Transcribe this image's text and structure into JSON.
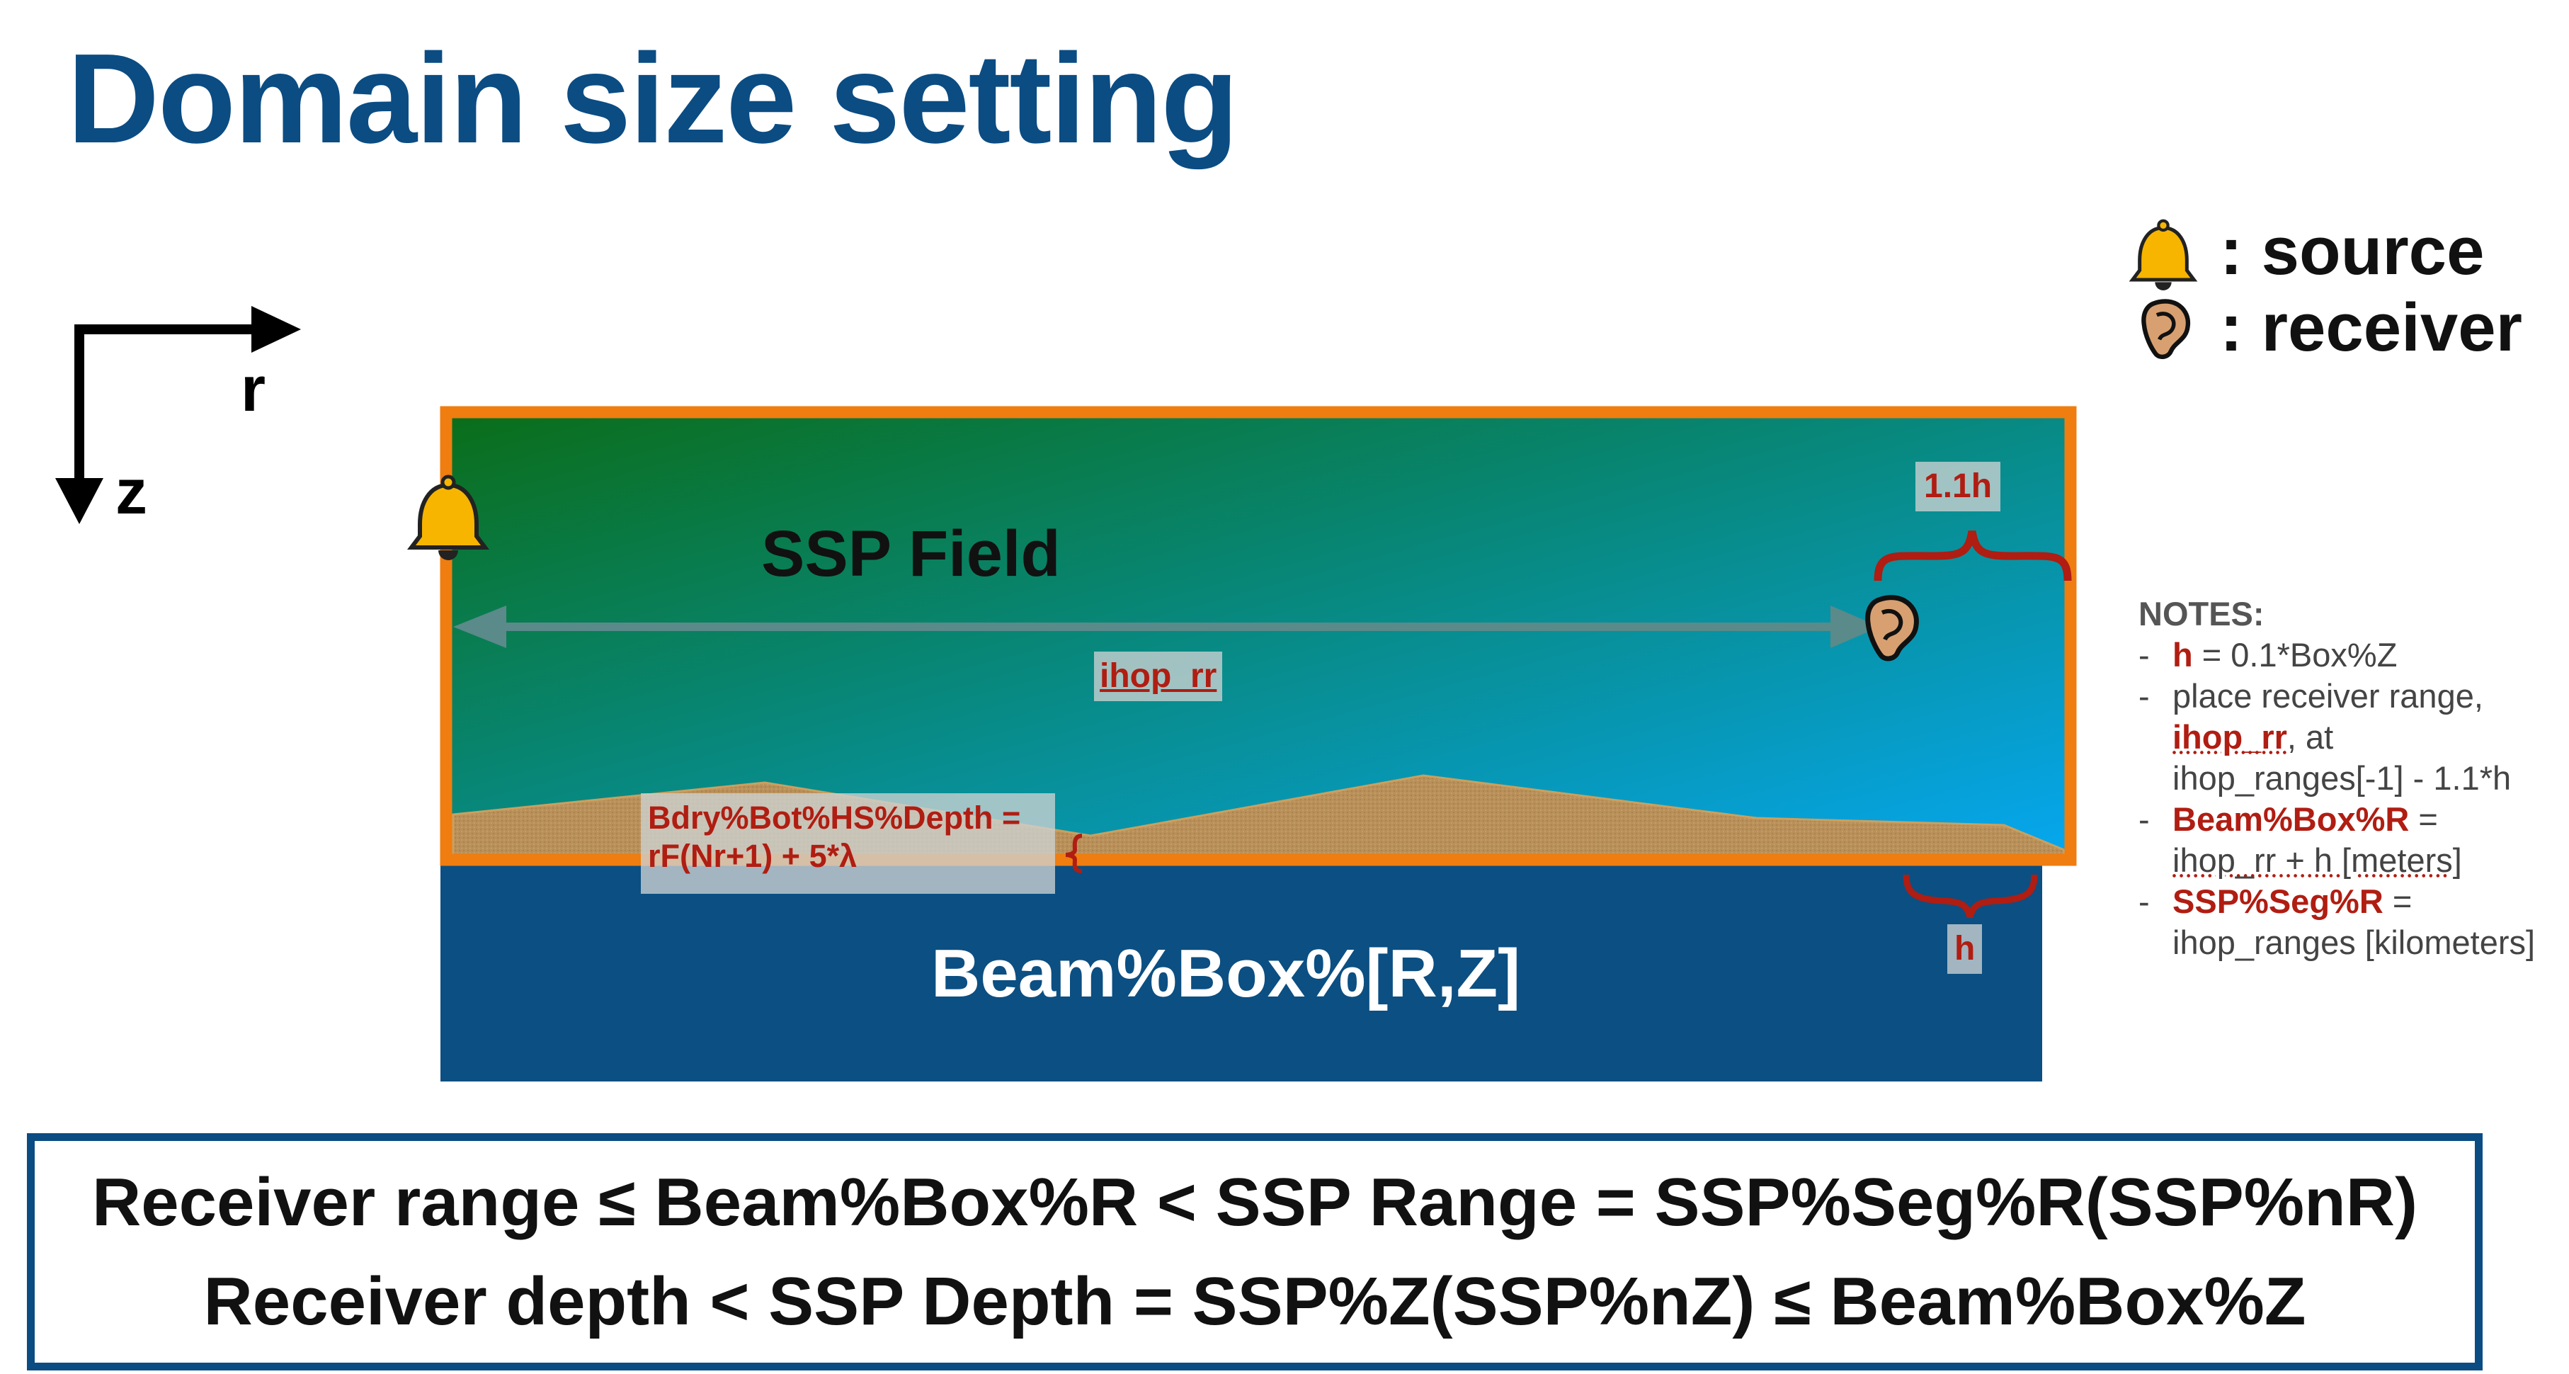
{
  "title": "Domain size setting",
  "legend": {
    "source_icon": "bell-icon",
    "source_label": ": source",
    "receiver_icon": "ear-icon",
    "receiver_label": ": receiver"
  },
  "axes": {
    "r_label": "r",
    "z_label": "z"
  },
  "diagram": {
    "ssp_field_label": "SSP Field",
    "beam_box_label": "Beam%Box%[R,Z]",
    "ihop_rr_label": "ihop_rr",
    "bdry_label_line1": "Bdry%Bot%HS%Depth =",
    "bdry_label_line2": "rF(Nr+1) + 5*λ",
    "range_margin_label": "1.1h",
    "depth_margin_label": "h",
    "colors": {
      "field_top_left": "#0a6e1a",
      "field_bottom_right": "#06a7f0",
      "frame": "#ef7d10",
      "beam_box": "#0c4f82",
      "seabed": "#b9905a",
      "arrow": "#5a8a8a",
      "brace": "#b01d12"
    }
  },
  "notes": {
    "header": "NOTES:",
    "items": [
      {
        "prefix": "h",
        "text": " = 0.1*Box%Z"
      },
      {
        "pre": "place receiver range,",
        "bold": "ihop_rr",
        "post": ", at ihop_ranges[-1] - 1.1*h"
      },
      {
        "prefix": "Beam%Box%R",
        "text": " =",
        "line2": "ihop_rr + h [meters]"
      },
      {
        "prefix": "SSP%Seg%R",
        "text": " =",
        "line2": "ihop_ranges [kilometers]"
      }
    ]
  },
  "equations": {
    "line1": "Receiver range ≤ Beam%Box%R < SSP Range = SSP%Seg%R(SSP%nR)",
    "line2": "Receiver depth < SSP Depth = SSP%Z(SSP%nZ) ≤ Beam%Box%Z"
  }
}
